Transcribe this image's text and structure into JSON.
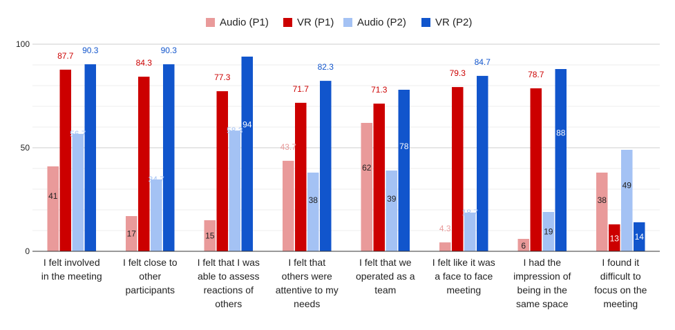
{
  "chart_data": {
    "type": "bar",
    "title": "",
    "xlabel": "",
    "ylabel": "",
    "ylim": [
      0,
      100
    ],
    "yticks": [
      0,
      50,
      100
    ],
    "ytick_labels": [
      "0",
      "50",
      "100"
    ],
    "grid": true,
    "legend_position": "top-center",
    "categories": [
      [
        "I felt involved",
        "in the meeting"
      ],
      [
        "I felt close to",
        "other",
        "participants"
      ],
      [
        "I felt that I was",
        "able to assess",
        "reactions of",
        "others"
      ],
      [
        "I felt that",
        "others were",
        "attentive to my",
        "needs"
      ],
      [
        "I felt that we",
        "operated as a",
        "team"
      ],
      [
        "I felt like it was",
        "a face to face",
        "meeting"
      ],
      [
        "I had the",
        "impression of",
        "being in the",
        "same space"
      ],
      [
        "I found it",
        "difficult to",
        "focus on the",
        "meeting"
      ]
    ],
    "series": [
      {
        "name": "Audio (P1)",
        "color": "#e99a9a",
        "values": [
          41,
          17,
          15,
          43.7,
          62,
          4.3,
          6,
          38
        ],
        "labels": [
          "41",
          "17",
          "15",
          "43.7",
          "62",
          "4.3",
          "6",
          "38"
        ],
        "label_positions": [
          "inside",
          "inside",
          "inside",
          "outside",
          "inside",
          "outside",
          "inside",
          "inside"
        ]
      },
      {
        "name": "VR (P1)",
        "color": "#cc0000",
        "values": [
          87.7,
          84.3,
          77.3,
          71.7,
          71.3,
          79.3,
          78.7,
          13
        ],
        "labels": [
          "87.7",
          "84.3",
          "77.3",
          "71.7",
          "71.3",
          "79.3",
          "78.7",
          "13"
        ],
        "label_positions": [
          "outside",
          "outside",
          "outside",
          "outside",
          "outside",
          "outside",
          "outside",
          "inside"
        ]
      },
      {
        "name": "Audio (P2)",
        "color": "#a4c2f4",
        "values": [
          56.7,
          34.7,
          58.3,
          38,
          39,
          18.7,
          19,
          49
        ],
        "labels": [
          "56.7",
          "34.7",
          "58.3",
          "38",
          "39",
          "18.7",
          "19",
          "49"
        ],
        "label_positions": [
          "edge",
          "edge",
          "edge",
          "inside",
          "inside",
          "edge",
          "inside",
          "inside"
        ]
      },
      {
        "name": "VR (P2)",
        "color": "#1155cc",
        "values": [
          90.3,
          90.3,
          94,
          82.3,
          78,
          84.7,
          88,
          14
        ],
        "labels": [
          "90.3",
          "90.3",
          "94",
          "82.3",
          "78",
          "84.7",
          "88",
          "14"
        ],
        "label_positions": [
          "outside",
          "outside",
          "inside",
          "outside",
          "inside",
          "outside",
          "inside",
          "inside"
        ]
      }
    ]
  }
}
